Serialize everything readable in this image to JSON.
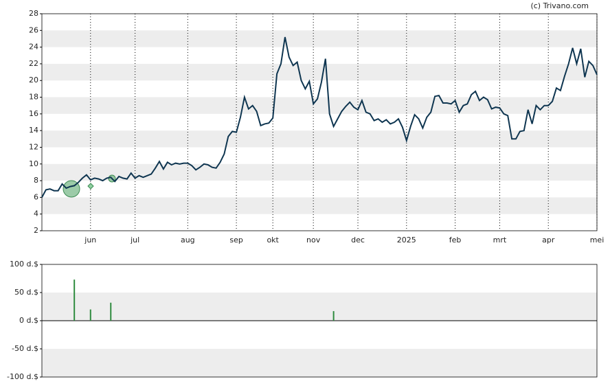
{
  "copyright": "(c) Trivano.com",
  "chart_data": [
    {
      "type": "line",
      "color": "#0e3550",
      "categories": [
        null,
        null,
        null,
        null,
        null,
        null,
        null,
        null,
        null,
        null,
        null,
        null,
        "jun",
        null,
        null,
        null,
        null,
        null,
        null,
        null,
        null,
        null,
        null,
        "jul",
        null,
        null,
        null,
        null,
        null,
        null,
        null,
        null,
        null,
        null,
        null,
        null,
        "aug",
        null,
        null,
        null,
        null,
        null,
        null,
        null,
        null,
        null,
        null,
        null,
        "sep",
        null,
        null,
        null,
        null,
        null,
        null,
        null,
        null,
        "okt",
        null,
        null,
        null,
        null,
        null,
        null,
        null,
        null,
        null,
        "nov",
        null,
        null,
        null,
        null,
        null,
        null,
        null,
        null,
        null,
        null,
        "dec",
        null,
        null,
        null,
        null,
        null,
        null,
        null,
        null,
        null,
        null,
        null,
        "2025",
        null,
        null,
        null,
        null,
        null,
        null,
        null,
        null,
        null,
        null,
        null,
        "feb",
        null,
        null,
        null,
        null,
        null,
        null,
        null,
        null,
        null,
        null,
        "mrt",
        null,
        null,
        null,
        null,
        null,
        null,
        null,
        null,
        null,
        null,
        null,
        "apr",
        null,
        null,
        null,
        null,
        null,
        null,
        null,
        null,
        null,
        null,
        null,
        "mei"
      ],
      "values": [
        6.0,
        6.9,
        7.0,
        6.8,
        6.8,
        7.6,
        7.1,
        7.3,
        7.4,
        7.8,
        8.3,
        8.7,
        8.1,
        8.3,
        8.2,
        8.0,
        8.3,
        8.4,
        7.9,
        8.5,
        8.3,
        8.2,
        8.9,
        8.3,
        8.6,
        8.4,
        8.6,
        8.8,
        9.5,
        10.3,
        9.4,
        10.2,
        9.9,
        10.1,
        10.0,
        10.1,
        10.1,
        9.8,
        9.3,
        9.6,
        10.0,
        9.9,
        9.6,
        9.5,
        10.2,
        11.2,
        13.3,
        13.9,
        13.8,
        15.6,
        18.0,
        16.6,
        17.0,
        16.3,
        14.6,
        14.8,
        14.9,
        15.5,
        20.8,
        22.0,
        25.2,
        22.8,
        21.8,
        22.2,
        20.0,
        19.0,
        19.9,
        17.2,
        17.8,
        19.8,
        22.6,
        16.0,
        14.5,
        15.4,
        16.3,
        16.9,
        17.4,
        16.8,
        16.5,
        17.6,
        16.2,
        16.0,
        15.2,
        15.4,
        15.0,
        15.3,
        14.8,
        15.0,
        15.4,
        14.4,
        12.8,
        14.5,
        15.9,
        15.4,
        14.3,
        15.6,
        16.2,
        18.1,
        18.2,
        17.3,
        17.3,
        17.2,
        17.6,
        16.2,
        17.0,
        17.2,
        18.3,
        18.7,
        17.6,
        18.0,
        17.7,
        16.6,
        16.8,
        16.7,
        16.0,
        15.8,
        13.0,
        13.0,
        13.9,
        14.0,
        16.5,
        14.8,
        17.0,
        16.5,
        17.0,
        17.0,
        17.5,
        19.1,
        18.8,
        20.5,
        22.0,
        23.9,
        22.0,
        23.8,
        20.4,
        22.3,
        21.8,
        20.7
      ],
      "ylim": [
        2,
        28
      ],
      "yticks": [
        2,
        4,
        6,
        8,
        10,
        12,
        14,
        16,
        18,
        20,
        22,
        24,
        26,
        28
      ],
      "grid": true
    },
    {
      "type": "bar",
      "color": "#2e8b3e",
      "values": [
        null,
        null,
        null,
        null,
        null,
        null,
        null,
        null,
        73,
        null,
        null,
        null,
        20,
        null,
        null,
        null,
        null,
        32,
        null,
        null,
        null,
        null,
        null,
        null,
        null,
        null,
        null,
        null,
        null,
        null,
        null,
        null,
        null,
        null,
        null,
        null,
        null,
        null,
        null,
        null,
        null,
        null,
        null,
        null,
        null,
        null,
        null,
        null,
        null,
        null,
        null,
        null,
        null,
        null,
        null,
        null,
        null,
        null,
        null,
        null,
        null,
        null,
        null,
        null,
        null,
        null,
        null,
        null,
        null,
        null,
        null,
        null,
        17,
        null,
        null,
        null,
        null,
        null,
        null,
        null,
        null,
        null,
        null,
        null,
        null,
        null,
        null,
        null,
        null,
        null,
        null,
        null,
        null,
        null,
        null,
        null,
        null,
        null,
        null,
        null,
        null,
        null,
        null,
        null,
        null,
        null,
        null,
        null,
        null,
        null,
        null,
        null,
        null,
        null,
        null,
        null,
        null,
        null,
        null,
        null,
        null,
        null,
        null,
        null,
        null,
        null,
        null,
        null,
        null,
        null,
        null,
        null,
        null,
        null,
        null,
        null,
        null,
        null
      ],
      "ylim": [
        -100,
        100
      ],
      "yticks": [
        {
          "value": -100,
          "label": "-100 d.$"
        },
        {
          "value": -50,
          "label": "-50 d.$"
        },
        {
          "value": 0,
          "label": "0 d.$"
        },
        {
          "value": 50,
          "label": "50 d.$"
        },
        {
          "value": 100,
          "label": "100 d.$"
        }
      ],
      "grid": true
    }
  ]
}
